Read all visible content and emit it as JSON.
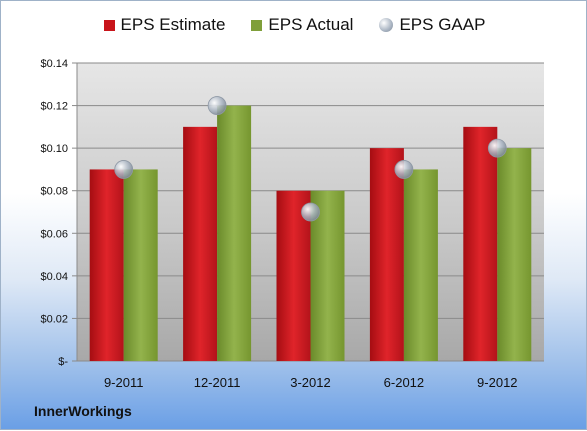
{
  "brand": "InnerWorkings",
  "legend": [
    {
      "label": "EPS Estimate",
      "color": "#c8141a",
      "shape": "square"
    },
    {
      "label": "EPS Actual",
      "color": "#7f9f3a",
      "shape": "square"
    },
    {
      "label": "EPS GAAP",
      "color": "#a9b4c2",
      "shape": "circle"
    }
  ],
  "chart_data": {
    "type": "bar",
    "categories": [
      "9-2011",
      "12-2011",
      "3-2012",
      "6-2012",
      "9-2012"
    ],
    "series": [
      {
        "name": "EPS Estimate",
        "type": "bar",
        "color": "#c8141a",
        "values": [
          0.09,
          0.11,
          0.08,
          0.1,
          0.11
        ]
      },
      {
        "name": "EPS Actual",
        "type": "bar",
        "color": "#7f9f3a",
        "values": [
          0.09,
          0.12,
          0.08,
          0.09,
          0.1
        ]
      },
      {
        "name": "EPS GAAP",
        "type": "marker",
        "color": "#a9b4c2",
        "values": [
          0.09,
          0.12,
          0.07,
          0.09,
          0.1
        ]
      }
    ],
    "yticks": [
      "$-",
      "$0.02",
      "$0.04",
      "$0.06",
      "$0.08",
      "$0.10",
      "$0.12",
      "$0.14"
    ],
    "ylim": [
      0,
      0.14
    ],
    "grid": true,
    "legend_position": "top"
  }
}
